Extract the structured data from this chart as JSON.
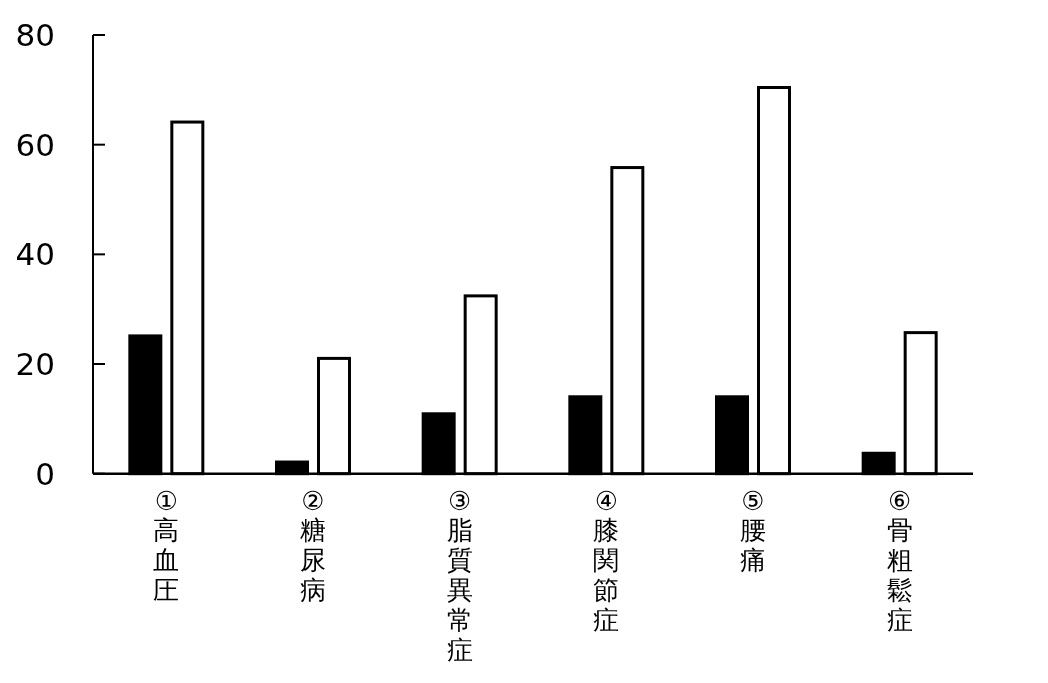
{
  "chart_data": {
    "type": "bar",
    "categories": [
      "①高血圧",
      "②糖尿病",
      "③脂質異常症",
      "④膝関節症",
      "⑤腰痛",
      "⑥骨粗鬆症"
    ],
    "series": [
      {
        "color": "#000000",
        "values": [
          25.4,
          2.4,
          11.2,
          14.3,
          14.3,
          4.0
        ]
      },
      {
        "color": "#ffffff",
        "values": [
          64.4,
          21.3,
          32.7,
          56.1,
          70.7,
          26.0
        ]
      }
    ],
    "ylim": [
      0,
      80
    ],
    "yticks": [
      0,
      20,
      40,
      60,
      80
    ]
  }
}
